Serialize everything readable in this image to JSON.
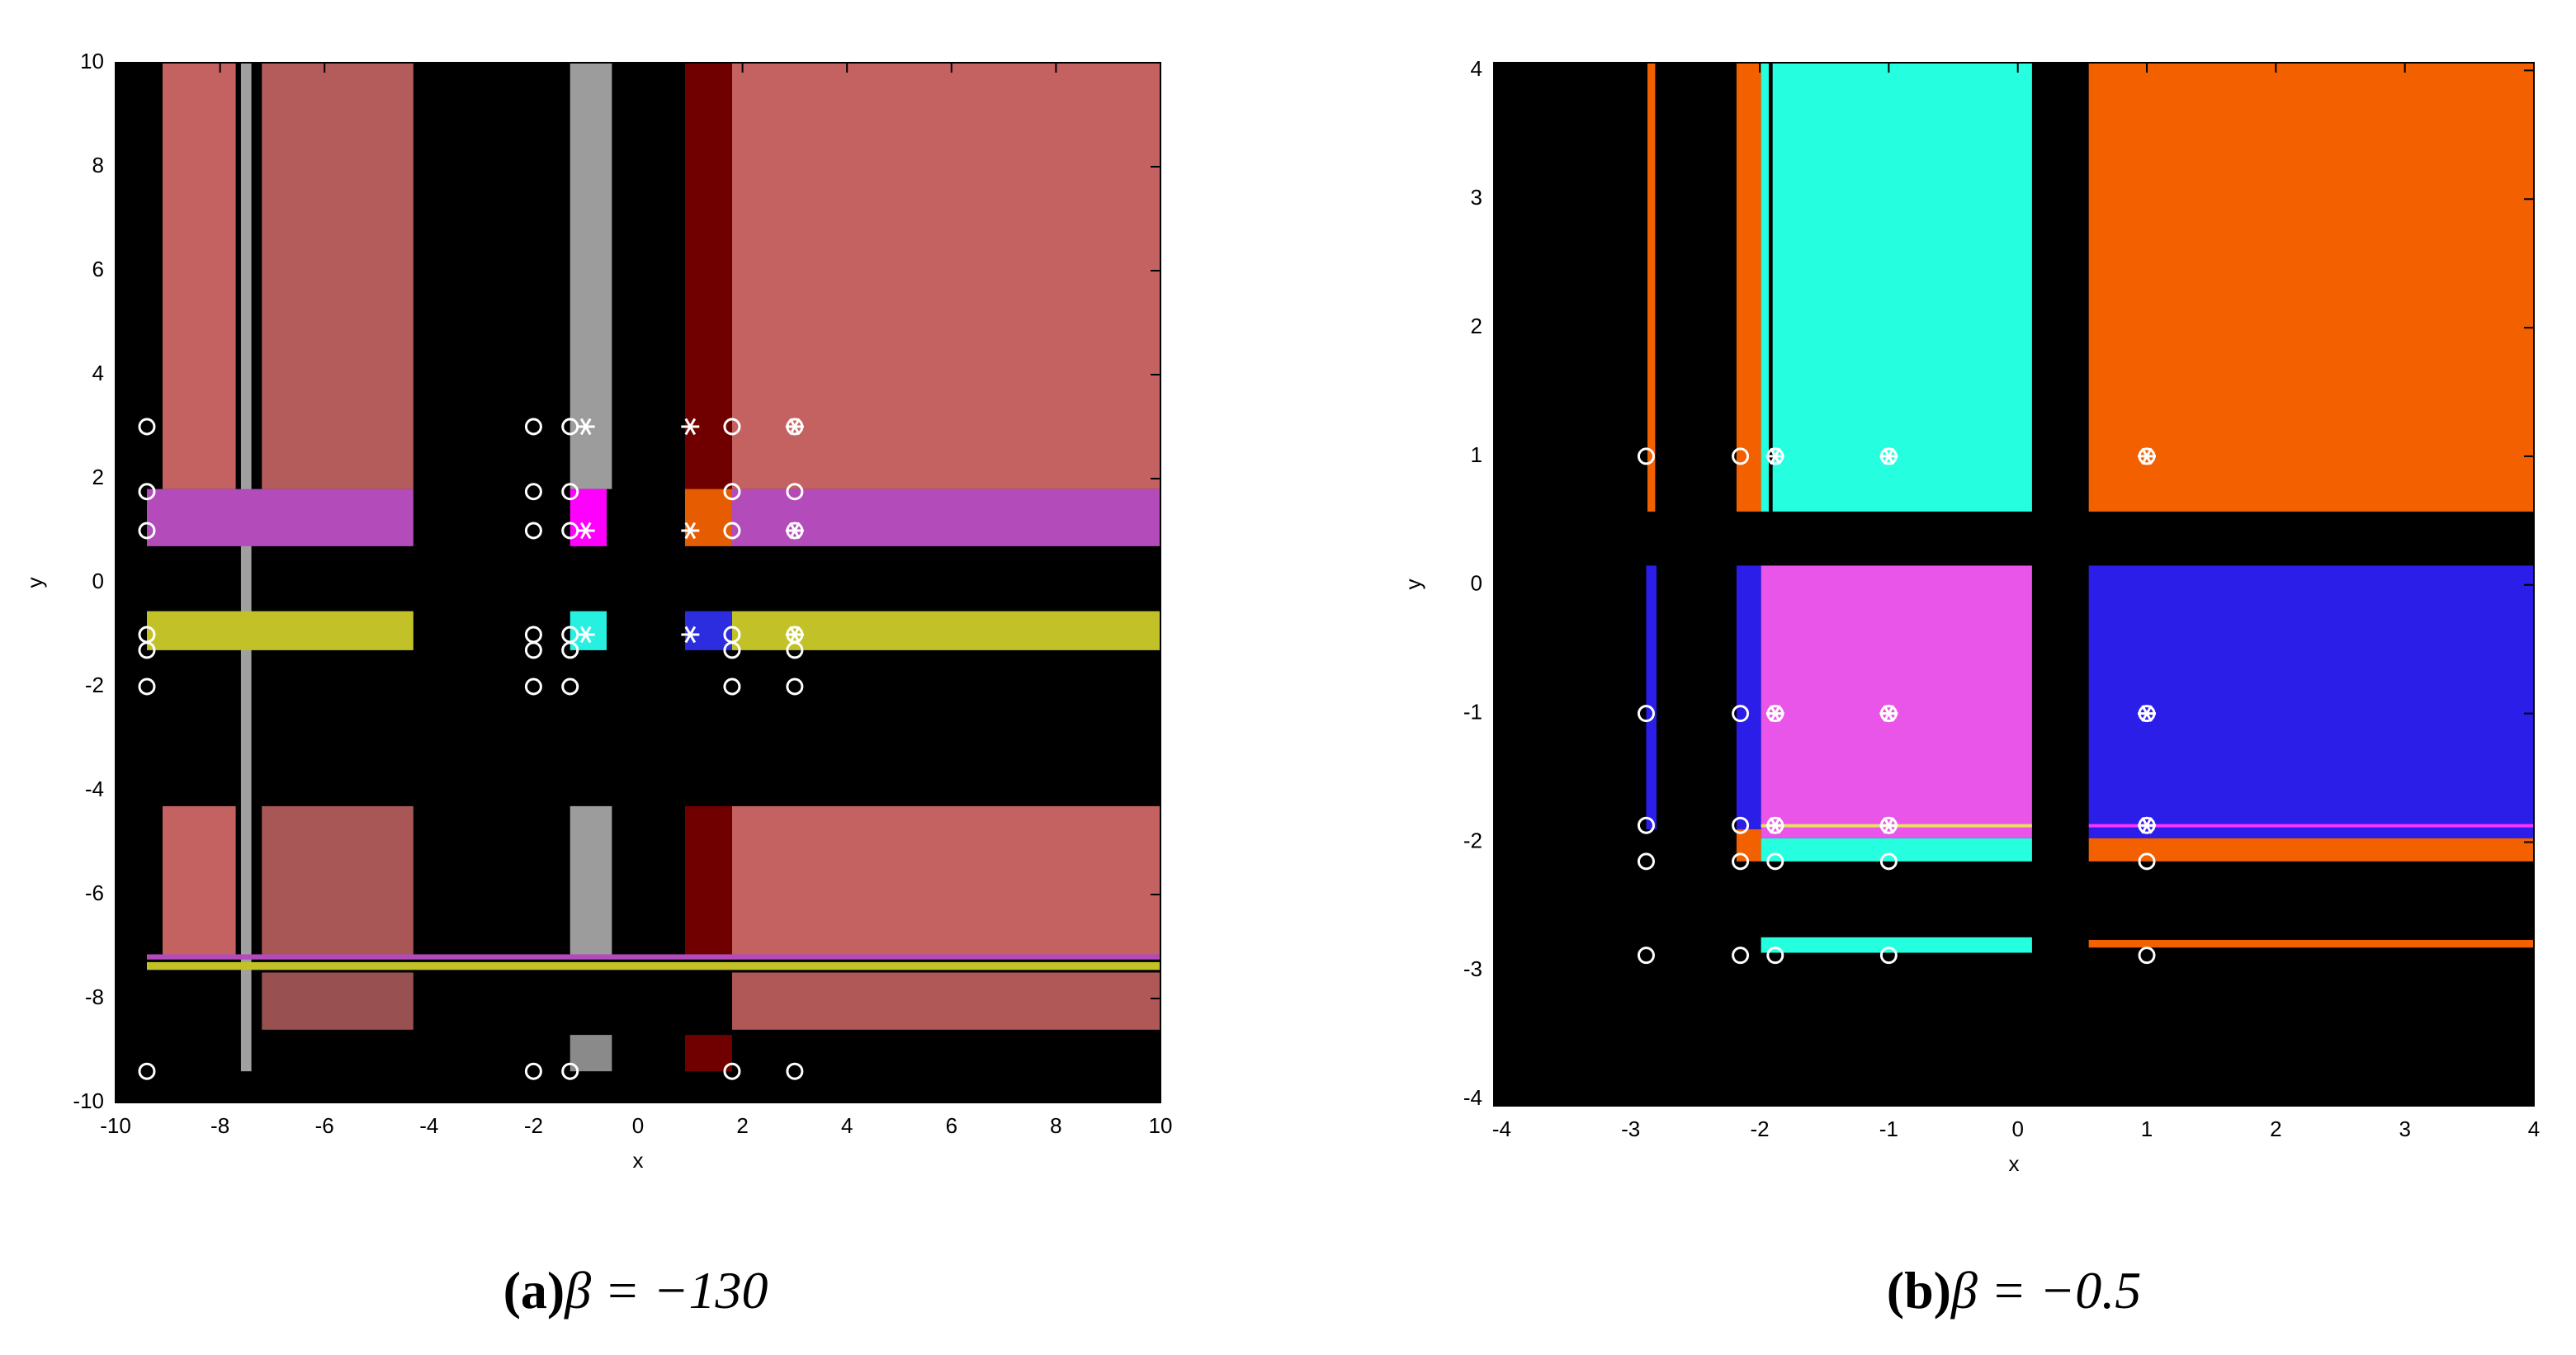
{
  "chart_data": [
    {
      "type": "region-map",
      "caption_label": "(a)",
      "caption": "β = −130",
      "xlabel": "x",
      "ylabel": "y",
      "xlim": [
        -10,
        10
      ],
      "ylim": [
        -10,
        10
      ],
      "xticks": [
        -10,
        -8,
        -6,
        -4,
        -2,
        0,
        2,
        4,
        6,
        8,
        10
      ],
      "yticks": [
        -10,
        -8,
        -6,
        -4,
        -2,
        0,
        2,
        4,
        6,
        8,
        10
      ],
      "background": "#000000",
      "regions": [
        {
          "x": [
            1.8,
            10
          ],
          "y": [
            1.8,
            10
          ],
          "color": "#c46262"
        },
        {
          "x": [
            1.8,
            10
          ],
          "y": [
            -7.2,
            -4.3
          ],
          "color": "#c46262"
        },
        {
          "x": [
            1.8,
            10
          ],
          "y": [
            -8.6,
            -7.5
          ],
          "color": "#b05858"
        },
        {
          "x": [
            -7.2,
            -4.3
          ],
          "y": [
            1.8,
            10
          ],
          "color": "#b45c5c"
        },
        {
          "x": [
            -7.2,
            -4.3
          ],
          "y": [
            -7.2,
            -4.3
          ],
          "color": "#a85656"
        },
        {
          "x": [
            -7.2,
            -4.3
          ],
          "y": [
            -8.6,
            -7.5
          ],
          "color": "#985050"
        },
        {
          "x": [
            -9.1,
            -7.7
          ],
          "y": [
            1.8,
            10
          ],
          "color": "#c46262"
        },
        {
          "x": [
            -9.1,
            -7.7
          ],
          "y": [
            -7.2,
            -4.3
          ],
          "color": "#c46262"
        },
        {
          "x": [
            -7.6,
            -7.4
          ],
          "y": [
            -9.4,
            10
          ],
          "color": "#a0a0a0"
        },
        {
          "x": [
            -1.3,
            -0.5
          ],
          "y": [
            1.8,
            10
          ],
          "color": "#9c9c9c"
        },
        {
          "x": [
            -1.3,
            -0.5
          ],
          "y": [
            -7.2,
            -4.3
          ],
          "color": "#9c9c9c"
        },
        {
          "x": [
            -1.3,
            -0.5
          ],
          "y": [
            -9.4,
            -8.7
          ],
          "color": "#8a8a8a"
        },
        {
          "x": [
            0.9,
            1.8
          ],
          "y": [
            1.8,
            10
          ],
          "color": "#700000"
        },
        {
          "x": [
            0.9,
            1.8
          ],
          "y": [
            -7.2,
            -4.3
          ],
          "color": "#700000"
        },
        {
          "x": [
            0.9,
            1.8
          ],
          "y": [
            -9.4,
            -8.7
          ],
          "color": "#700000"
        },
        {
          "x": [
            -9.4,
            -4.3
          ],
          "y": [
            0.7,
            1.8
          ],
          "color": "#b34bbb"
        },
        {
          "x": [
            1.8,
            10
          ],
          "y": [
            0.7,
            1.8
          ],
          "color": "#b34bbb"
        },
        {
          "x": [
            -1.3,
            -0.6
          ],
          "y": [
            0.7,
            1.8
          ],
          "color": "#ff00ff"
        },
        {
          "x": [
            0.9,
            1.8
          ],
          "y": [
            0.7,
            1.8
          ],
          "color": "#e65c00"
        },
        {
          "x": [
            -9.4,
            -4.3
          ],
          "y": [
            -1.3,
            -0.55
          ],
          "color": "#c2c228"
        },
        {
          "x": [
            1.8,
            10
          ],
          "y": [
            -1.3,
            -0.55
          ],
          "color": "#c2c228"
        },
        {
          "x": [
            -1.3,
            -0.6
          ],
          "y": [
            -1.3,
            -0.55
          ],
          "color": "#28f0e0"
        },
        {
          "x": [
            0.9,
            1.8
          ],
          "y": [
            -1.3,
            -0.55
          ],
          "color": "#2d2de0"
        },
        {
          "x": [
            -9.4,
            10
          ],
          "y": [
            -7.45,
            -7.3
          ],
          "color": "#c2c228"
        },
        {
          "x": [
            -9.4,
            10
          ],
          "y": [
            -7.25,
            -7.15
          ],
          "color": "#b34bbb"
        }
      ],
      "points": {
        "x": [
          -9.4,
          -9.4,
          -9.4,
          -9.4,
          -9.4,
          -9.4,
          -9.4,
          -2,
          -2,
          -2,
          -2,
          -2,
          -2,
          -2,
          -1.3,
          -1.3,
          -1.3,
          -1.3,
          -1.3,
          -1.3,
          -1.3,
          -1,
          -1,
          -1,
          1,
          1,
          1,
          1.8,
          1.8,
          1.8,
          1.8,
          1.8,
          1.8,
          1.8,
          3,
          3,
          3,
          3,
          3,
          3,
          3
        ],
        "y": [
          3,
          1.75,
          1,
          -1,
          -1.3,
          -2,
          -9.4,
          3,
          1.75,
          1,
          -1,
          -1.3,
          -2,
          -9.4,
          3,
          1.75,
          1,
          -1,
          -1.3,
          -2,
          -9.4,
          3,
          1,
          -1,
          3,
          1,
          -1,
          3,
          1.75,
          1,
          -1,
          -1.3,
          -2,
          -9.4,
          3,
          1.75,
          1,
          -1,
          -1.3,
          -2,
          -9.4
        ],
        "marker": [
          "o",
          "o",
          "o",
          "o",
          "o",
          "o",
          "o",
          "o",
          "o",
          "o",
          "o",
          "o",
          "o",
          "o",
          "o",
          "o",
          "o",
          "o",
          "o",
          "o",
          "o",
          "*",
          "*",
          "*",
          "*",
          "*",
          "*",
          "o",
          "o",
          "o",
          "o",
          "o",
          "o",
          "o",
          "o*",
          "o",
          "o*",
          "o*",
          "o",
          "o",
          "o"
        ]
      }
    },
    {
      "type": "region-map",
      "caption_label": "(b)",
      "caption": "β = −0.5",
      "xlabel": "x",
      "ylabel": "y",
      "xlim": [
        -4.06,
        4
      ],
      "ylim": [
        -4.05,
        4.06
      ],
      "xticks": [
        -4,
        -3,
        -2,
        -1,
        0,
        1,
        2,
        3,
        4
      ],
      "yticks": [
        -4,
        -3,
        -2,
        -1,
        0,
        1,
        2,
        3,
        4
      ],
      "background": "#000000",
      "regions": [
        {
          "x": [
            0.55,
            4
          ],
          "y": [
            0.57,
            4.06
          ],
          "color": "#f26000"
        },
        {
          "x": [
            -1.99,
            0.11
          ],
          "y": [
            0.57,
            4.06
          ],
          "color": "#25ffe0"
        },
        {
          "x": [
            -2.18,
            -1.99
          ],
          "y": [
            0.57,
            4.06
          ],
          "color": "#f26000"
        },
        {
          "x": [
            -1.93,
            -1.9
          ],
          "y": [
            0.57,
            4.06
          ],
          "color": "#000000"
        },
        {
          "x": [
            -2.87,
            -2.81
          ],
          "y": [
            0.57,
            4.06
          ],
          "color": "#f26000"
        },
        {
          "x": [
            -1.99,
            0.11
          ],
          "y": [
            -1.97,
            0.15
          ],
          "color": "#e855e8"
        },
        {
          "x": [
            -1.99,
            0.11
          ],
          "y": [
            -2.15,
            -1.97
          ],
          "color": "#25ffe0"
        },
        {
          "x": [
            -2.18,
            -1.99
          ],
          "y": [
            -1.9,
            0.15
          ],
          "color": "#2a1ee8"
        },
        {
          "x": [
            -2.18,
            -1.99
          ],
          "y": [
            -2.15,
            -1.9
          ],
          "color": "#f26000"
        },
        {
          "x": [
            -2.88,
            -2.8
          ],
          "y": [
            -1.9,
            0.15
          ],
          "color": "#2a1ee8"
        },
        {
          "x": [
            0.55,
            4
          ],
          "y": [
            -1.97,
            0.15
          ],
          "color": "#2a1ee8"
        },
        {
          "x": [
            0.55,
            4
          ],
          "y": [
            -2.15,
            -1.97
          ],
          "color": "#f26000"
        },
        {
          "x": [
            -1.99,
            0.11
          ],
          "y": [
            -2.86,
            -2.74
          ],
          "color": "#25ffe0"
        },
        {
          "x": [
            0.55,
            4
          ],
          "y": [
            -2.82,
            -2.76
          ],
          "color": "#f26000"
        },
        {
          "x": [
            0.55,
            4
          ],
          "y": [
            -1.885,
            -1.86
          ],
          "color": "#ff33ff"
        },
        {
          "x": [
            -1.99,
            0.11
          ],
          "y": [
            -1.885,
            -1.86
          ],
          "color": "#e8e060"
        }
      ],
      "points": {
        "x": [
          -2.88,
          -2.15,
          -1.88,
          -1,
          1,
          -2.88,
          -2.15,
          -1.88,
          -1,
          1,
          -2.88,
          -2.15,
          -1.88,
          -1,
          1,
          -2.88,
          -2.15,
          -1.88,
          -1,
          1,
          -2.88,
          -2.15,
          -1.88,
          -1,
          1
        ],
        "y": [
          1,
          1,
          1,
          1,
          1,
          -1,
          -1,
          -1,
          -1,
          -1,
          -1.87,
          -1.87,
          -1.87,
          -1.87,
          -1.87,
          -2.15,
          -2.15,
          -2.15,
          -2.15,
          -2.15,
          -2.88,
          -2.88,
          -2.88,
          -2.88,
          -2.88
        ],
        "marker": [
          "o",
          "o",
          "o*",
          "o*",
          "o*",
          "o",
          "o",
          "o*",
          "o*",
          "o*",
          "o",
          "o",
          "o*",
          "o*",
          "o*",
          "o",
          "o",
          "o",
          "o",
          "o",
          "o",
          "o",
          "o",
          "o",
          "o"
        ]
      }
    }
  ]
}
